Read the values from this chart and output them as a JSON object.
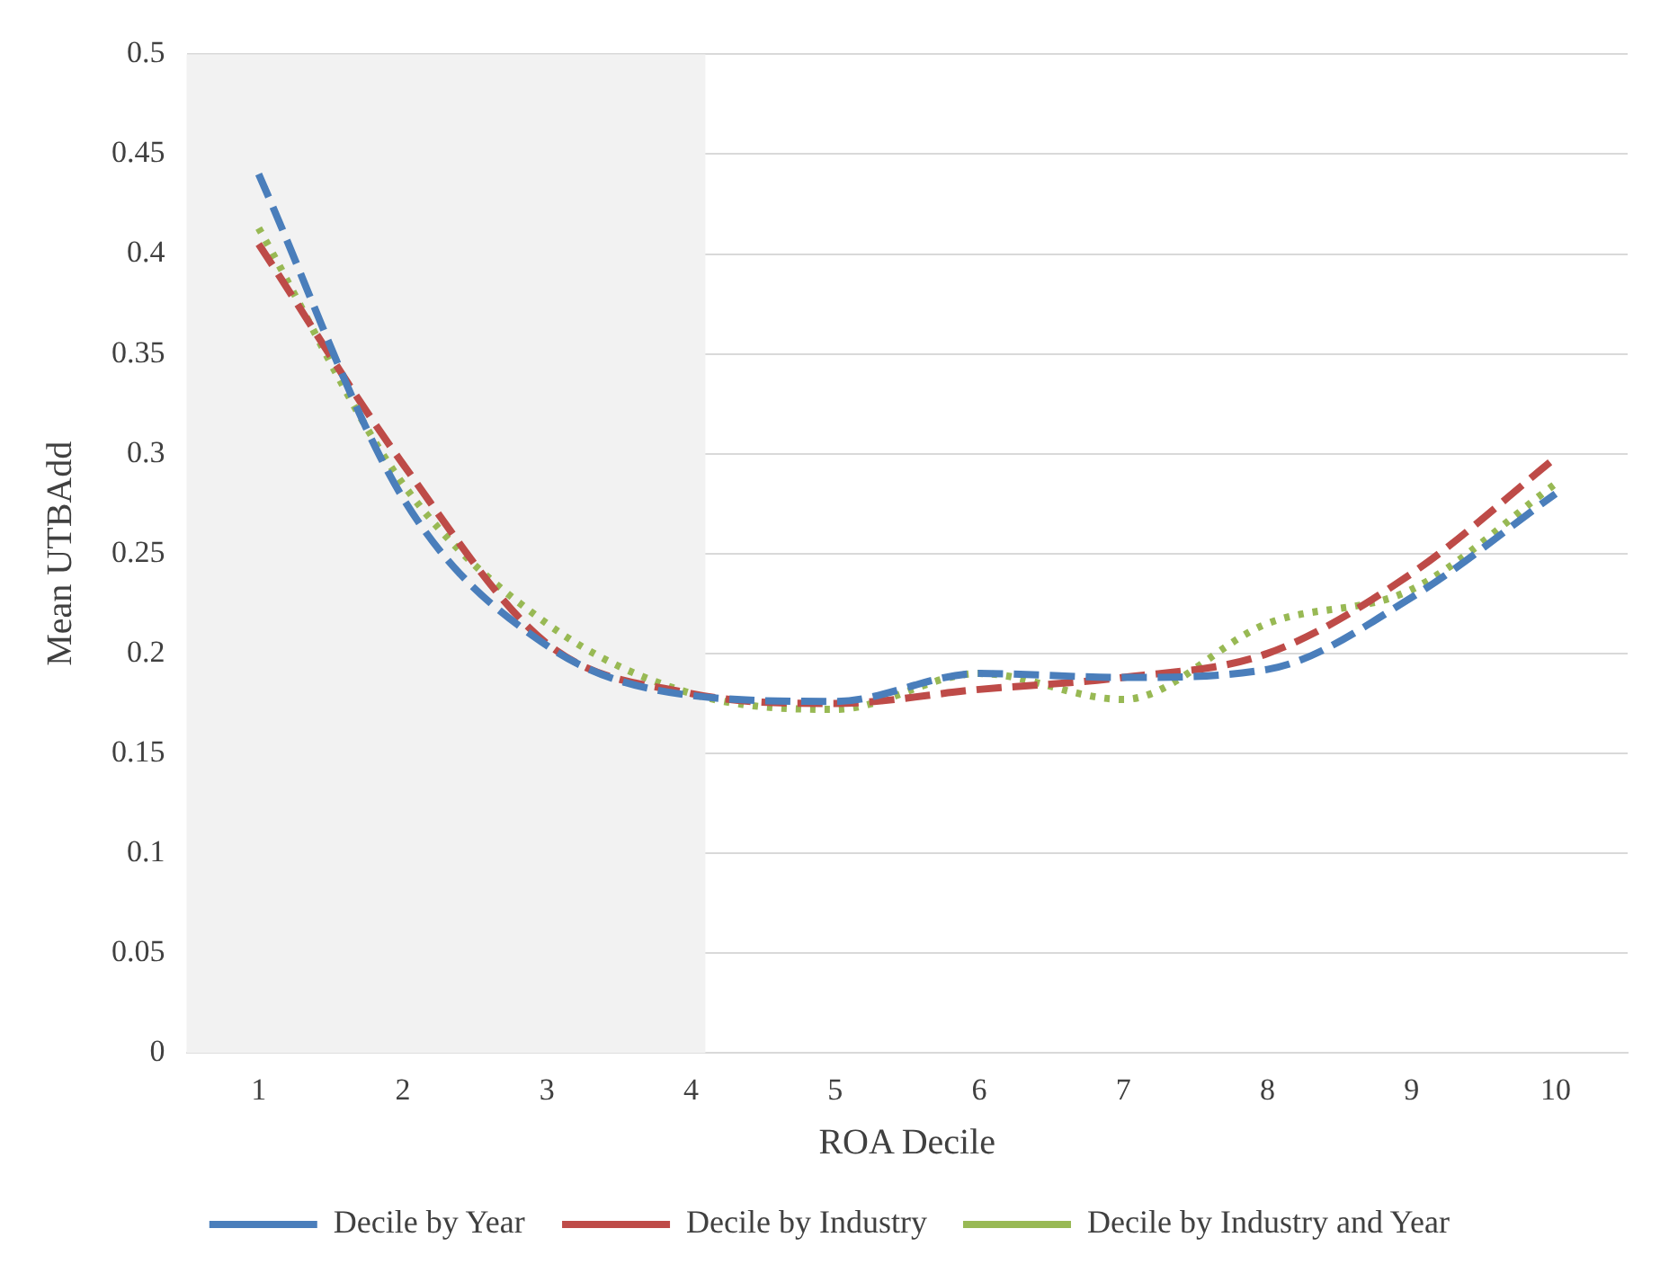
{
  "chart_data": {
    "type": "line",
    "xlabel": "ROA Decile",
    "ylabel": "Mean UTBAdd",
    "x": [
      1,
      2,
      3,
      4,
      5,
      6,
      7,
      8,
      9,
      10
    ],
    "series": [
      {
        "name": "Decile by Year",
        "color": "#4a7ebb",
        "line_style": "dashed",
        "values": [
          0.44,
          0.278,
          0.204,
          0.179,
          0.176,
          0.19,
          0.188,
          0.192,
          0.228,
          0.28
        ]
      },
      {
        "name": "Decile by Industry",
        "color": "#be4b48",
        "line_style": "dashed",
        "values": [
          0.405,
          0.295,
          0.205,
          0.18,
          0.175,
          0.182,
          0.188,
          0.2,
          0.24,
          0.298
        ]
      },
      {
        "name": "Decile by Industry and Year",
        "color": "#98b954",
        "line_style": "dotted",
        "values": [
          0.413,
          0.285,
          0.215,
          0.18,
          0.172,
          0.19,
          0.177,
          0.215,
          0.232,
          0.285
        ]
      }
    ],
    "xlim": [
      0.5,
      10.5
    ],
    "xticks": [
      1,
      2,
      3,
      4,
      5,
      6,
      7,
      8,
      9,
      10
    ],
    "ylim": [
      0,
      0.5
    ],
    "yticks": [
      0,
      0.05,
      0.1,
      0.15,
      0.2,
      0.25,
      0.3,
      0.35,
      0.4,
      0.45,
      0.5
    ],
    "bands": [
      {
        "axis": "x",
        "from": 0.5,
        "to": 4.1,
        "color": "#f2f2f2"
      }
    ],
    "grid": "y",
    "legend": "bottom",
    "marker": "none"
  }
}
